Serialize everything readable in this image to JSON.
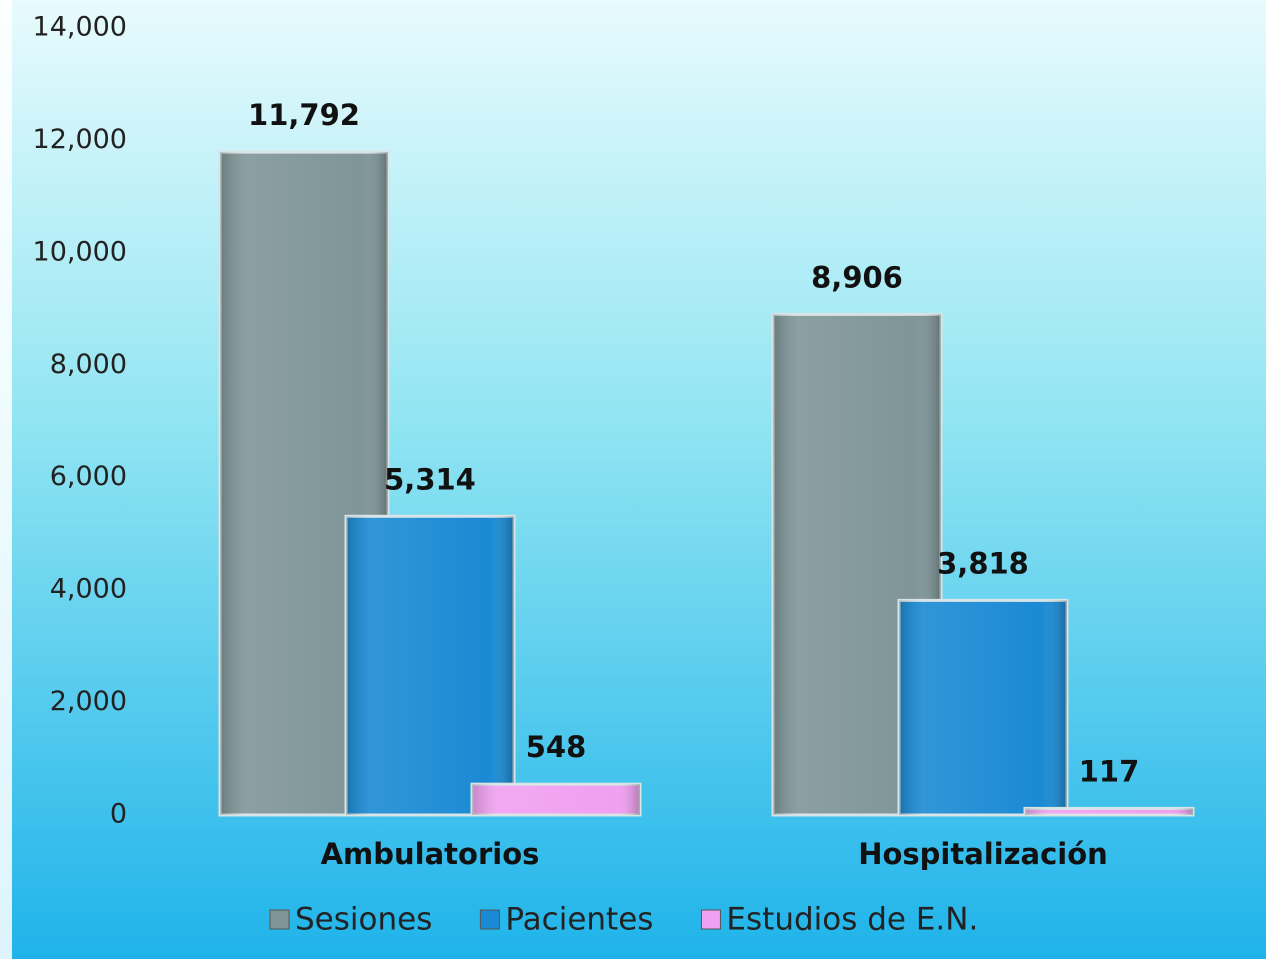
{
  "chart_data": {
    "type": "bar",
    "categories": [
      "Ambulatorios",
      "Hospitalización"
    ],
    "series": [
      {
        "name": "Sesiones",
        "color": "#7f9598",
        "values": [
          11792,
          8906
        ],
        "value_labels": [
          "11,792",
          "8,906"
        ]
      },
      {
        "name": "Pacientes",
        "color": "#1a8ad4",
        "values": [
          5314,
          3818
        ],
        "value_labels": [
          "5,314",
          "3,818"
        ]
      },
      {
        "name": "Estudios de E.N.",
        "color": "#f0a0f0",
        "values": [
          548,
          117
        ],
        "value_labels": [
          "548",
          "117"
        ]
      }
    ],
    "ylim": [
      0,
      14000
    ],
    "yticks": [
      0,
      {
        "value": 2000,
        "label": "2,000"
      },
      {
        "value": 4000,
        "label": "4,000"
      },
      {
        "value": 6000,
        "label": "6,000"
      },
      {
        "value": 8000,
        "label": "8,000"
      },
      {
        "value": 10000,
        "label": "10,000"
      },
      {
        "value": 12000,
        "label": "12,000"
      },
      {
        "value": 14000,
        "label": "14,000"
      }
    ],
    "grid": false,
    "legend": "bottom"
  }
}
